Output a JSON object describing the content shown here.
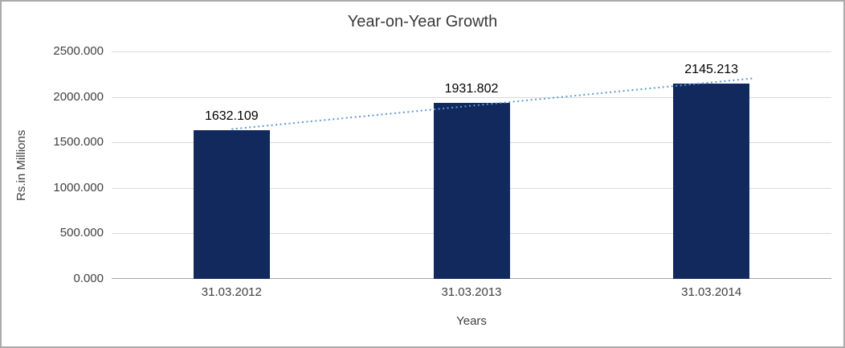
{
  "chart_data": {
    "type": "bar",
    "title": "Year-on-Year Growth",
    "xlabel": "Years",
    "ylabel": "Rs.in Millions",
    "categories": [
      "31.03.2012",
      "31.03.2013",
      "31.03.2014"
    ],
    "values": [
      1632.109,
      1931.802,
      2145.213
    ],
    "value_labels": [
      "1632.109",
      "1931.802",
      "2145.213"
    ],
    "ylim": [
      0,
      2500
    ],
    "y_tick_values": [
      0,
      500,
      1000,
      1500,
      2000,
      2500
    ],
    "y_tick_labels": [
      "0.000",
      "500.000",
      "1000.000",
      "1500.000",
      "2000.000",
      "2500.000"
    ],
    "grid": true,
    "legend": "none",
    "trendline": {
      "type": "linear",
      "style": "dotted",
      "color": "#5b9bd5"
    },
    "colors": {
      "bar": "#12295e",
      "gridline": "#d9d9d9",
      "axis_line": "#a6a6a6",
      "axis_text": "#3f3f3f",
      "label_text": "#000000"
    }
  }
}
